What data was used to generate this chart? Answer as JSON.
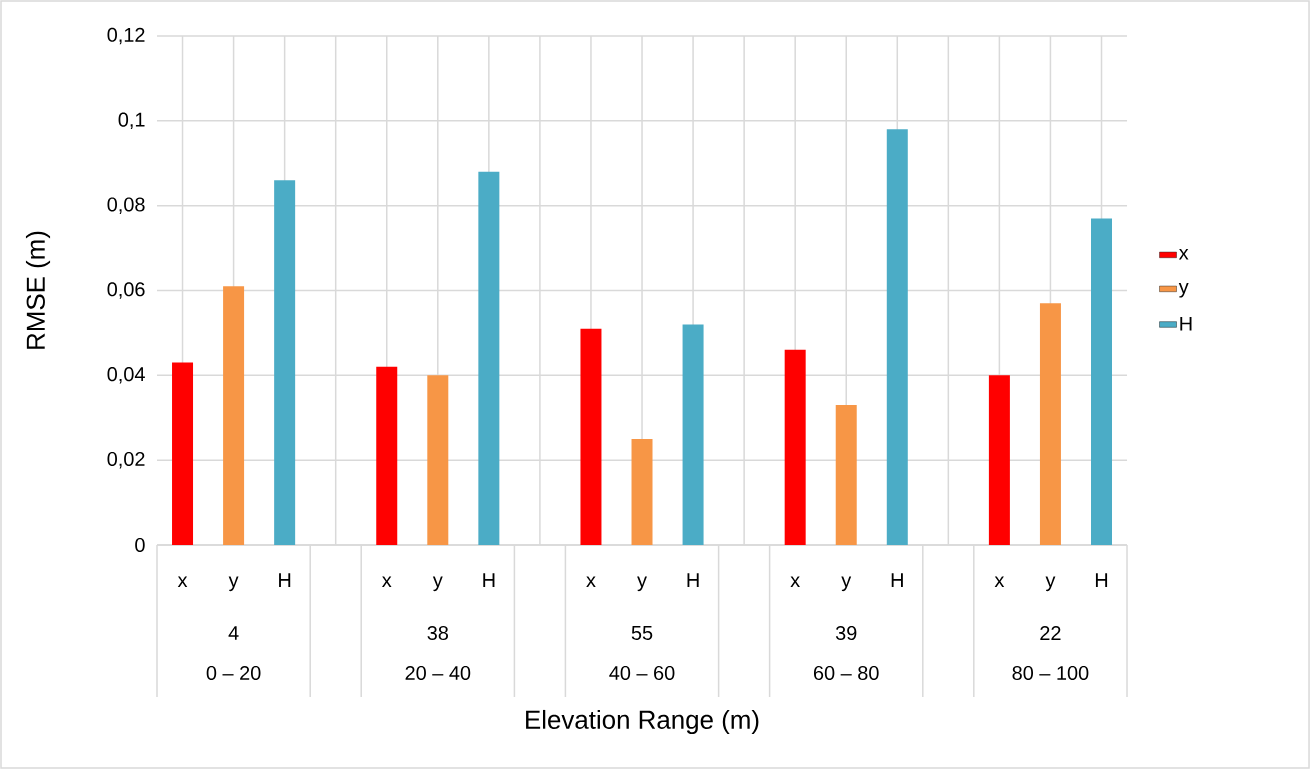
{
  "chart_data": {
    "type": "bar",
    "xlabel": "Elevation Range (m)",
    "ylabel": "RMSE (m)",
    "categories": [
      "x",
      "y",
      "H",
      null,
      "x",
      "y",
      "H",
      null,
      "x",
      "y",
      "H",
      null,
      "x",
      "y",
      "H",
      null,
      "x",
      "y",
      "H"
    ],
    "series": [
      {
        "name": "x",
        "color": "#ff0000",
        "values": [
          0.043,
          null,
          null,
          null,
          0.042,
          null,
          null,
          null,
          0.051,
          null,
          null,
          null,
          0.046,
          null,
          null,
          null,
          0.04,
          null,
          null
        ]
      },
      {
        "name": "y",
        "color": "#f79646",
        "values": [
          null,
          0.061,
          null,
          null,
          null,
          0.04,
          null,
          null,
          null,
          0.025,
          null,
          null,
          null,
          0.033,
          null,
          null,
          null,
          0.057,
          null
        ]
      },
      {
        "name": "H",
        "color": "#4bacc6",
        "values": [
          null,
          null,
          0.086,
          null,
          null,
          null,
          0.088,
          null,
          null,
          null,
          0.052,
          null,
          null,
          null,
          0.098,
          null,
          null,
          null,
          0.077
        ]
      }
    ],
    "annotations": [
      "4",
      "38",
      "55",
      "39",
      "22",
      "0 – 20",
      "20 – 40",
      "40 – 60",
      "60 – 80",
      "80 – 100"
    ],
    "ylim": [
      0,
      0.12
    ],
    "yticks": [
      {
        "value": 0,
        "label": "0"
      },
      {
        "value": 0.02,
        "label": "0,02"
      },
      {
        "value": 0.04,
        "label": "0,04"
      },
      {
        "value": 0.06,
        "label": "0,06"
      },
      {
        "value": 0.08,
        "label": "0,08"
      },
      {
        "value": 0.1,
        "label": "0,1"
      },
      {
        "value": 0.12,
        "label": "0,12"
      }
    ],
    "grid": true,
    "legend": "right"
  }
}
